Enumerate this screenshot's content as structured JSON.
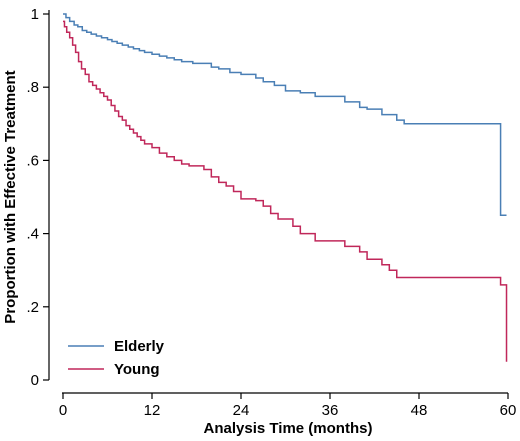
{
  "chart_data": {
    "type": "line",
    "step": true,
    "title": "",
    "xlabel": "Analysis Time (months)",
    "ylabel": "Proportion with Effective Treatment",
    "xlim": [
      0,
      60
    ],
    "ylim": [
      0,
      1
    ],
    "x_ticks": [
      0,
      12,
      24,
      36,
      48,
      60
    ],
    "x_tick_labels": [
      "0",
      "12",
      "24",
      "36",
      "48",
      "60"
    ],
    "y_ticks": [
      0,
      0.2,
      0.4,
      0.6,
      0.8,
      1
    ],
    "y_tick_labels": [
      "0",
      ".2",
      ".4",
      ".6",
      ".8",
      "1"
    ],
    "grid": false,
    "legend_position": "bottom-left",
    "series": [
      {
        "name": "Elderly",
        "color": "#4a7fb5",
        "x": [
          0,
          0.4,
          0.9,
          1.5,
          2.0,
          2.6,
          3.2,
          3.8,
          4.5,
          5.2,
          6.0,
          6.6,
          7.3,
          8.0,
          8.8,
          9.5,
          10.3,
          11.0,
          12.0,
          13.0,
          14.0,
          15.0,
          16.0,
          17.5,
          19.0,
          20.0,
          21.0,
          22.5,
          24.0,
          26.0,
          27.0,
          28.5,
          30.0,
          32.0,
          34.0,
          36.0,
          38.0,
          40.0,
          41.0,
          43.0,
          45.0,
          46.0,
          59.0,
          59.8
        ],
        "y": [
          1.0,
          0.99,
          0.98,
          0.97,
          0.965,
          0.955,
          0.95,
          0.945,
          0.94,
          0.935,
          0.93,
          0.925,
          0.92,
          0.915,
          0.91,
          0.905,
          0.9,
          0.895,
          0.89,
          0.885,
          0.88,
          0.875,
          0.87,
          0.865,
          0.865,
          0.855,
          0.85,
          0.84,
          0.835,
          0.825,
          0.815,
          0.805,
          0.79,
          0.785,
          0.775,
          0.775,
          0.76,
          0.745,
          0.74,
          0.725,
          0.71,
          0.7,
          0.45,
          0.45
        ]
      },
      {
        "name": "Young",
        "color": "#c0275a",
        "x": [
          0,
          0.2,
          0.5,
          0.9,
          1.3,
          1.7,
          2.1,
          2.5,
          3.0,
          3.5,
          4.0,
          4.5,
          5.0,
          5.5,
          6.0,
          6.5,
          7.0,
          7.5,
          8.0,
          8.5,
          9.0,
          9.5,
          10.0,
          10.5,
          11.0,
          12.0,
          13.0,
          14.0,
          15.0,
          16.0,
          17.0,
          18.0,
          19.0,
          20.0,
          21.0,
          22.0,
          23.0,
          24.0,
          26.0,
          27.0,
          28.0,
          29.0,
          31.0,
          32.0,
          34.0,
          37.0,
          38.0,
          40.0,
          41.0,
          43.0,
          44.0,
          45.0,
          59.0,
          59.8
        ],
        "y": [
          0.98,
          0.965,
          0.95,
          0.935,
          0.915,
          0.895,
          0.87,
          0.85,
          0.835,
          0.815,
          0.805,
          0.795,
          0.785,
          0.775,
          0.765,
          0.75,
          0.735,
          0.72,
          0.71,
          0.695,
          0.685,
          0.675,
          0.665,
          0.655,
          0.645,
          0.635,
          0.62,
          0.61,
          0.6,
          0.59,
          0.585,
          0.585,
          0.575,
          0.555,
          0.54,
          0.53,
          0.515,
          0.495,
          0.49,
          0.475,
          0.455,
          0.44,
          0.42,
          0.4,
          0.38,
          0.38,
          0.365,
          0.35,
          0.33,
          0.315,
          0.3,
          0.28,
          0.26,
          0.05
        ]
      }
    ]
  }
}
